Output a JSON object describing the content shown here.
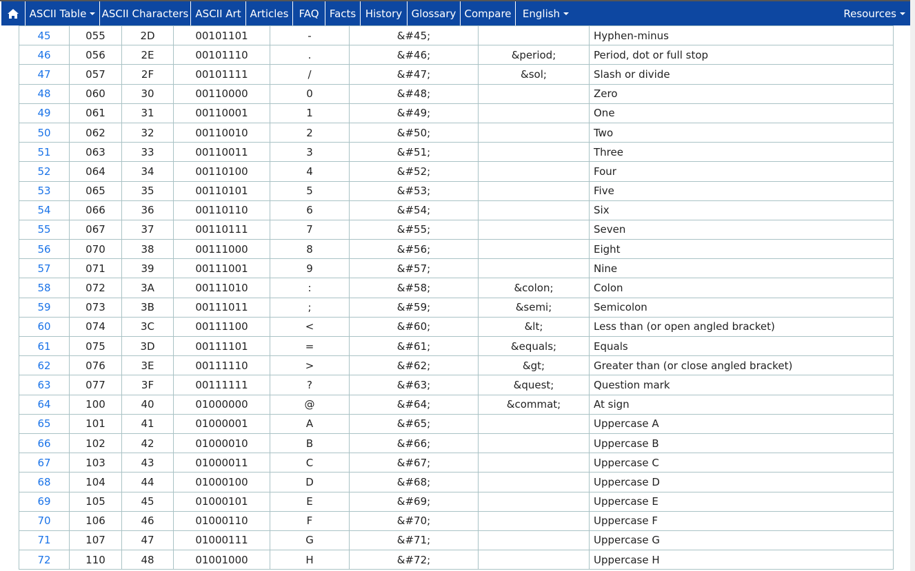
{
  "nav": {
    "home_icon": "home-icon",
    "items": [
      {
        "label": "ASCII Table",
        "dropdown": true
      },
      {
        "label": "ASCII Characters"
      },
      {
        "label": "ASCII Art"
      },
      {
        "label": "Articles"
      },
      {
        "label": "FAQ"
      },
      {
        "label": "Facts"
      },
      {
        "label": "History"
      },
      {
        "label": "Glossary"
      },
      {
        "label": "Compare"
      },
      {
        "label": "English",
        "dropdown": true
      }
    ],
    "resources": "Resources",
    "color": "#0d47a1"
  },
  "rows": [
    [
      "45",
      "055",
      "2D",
      "00101101",
      "-",
      "&#45;",
      "",
      "Hyphen-minus"
    ],
    [
      "46",
      "056",
      "2E",
      "00101110",
      ".",
      "&#46;",
      "&period;",
      "Period, dot or full stop"
    ],
    [
      "47",
      "057",
      "2F",
      "00101111",
      "/",
      "&#47;",
      "&sol;",
      "Slash or divide"
    ],
    [
      "48",
      "060",
      "30",
      "00110000",
      "0",
      "&#48;",
      "",
      "Zero"
    ],
    [
      "49",
      "061",
      "31",
      "00110001",
      "1",
      "&#49;",
      "",
      "One"
    ],
    [
      "50",
      "062",
      "32",
      "00110010",
      "2",
      "&#50;",
      "",
      "Two"
    ],
    [
      "51",
      "063",
      "33",
      "00110011",
      "3",
      "&#51;",
      "",
      "Three"
    ],
    [
      "52",
      "064",
      "34",
      "00110100",
      "4",
      "&#52;",
      "",
      "Four"
    ],
    [
      "53",
      "065",
      "35",
      "00110101",
      "5",
      "&#53;",
      "",
      "Five"
    ],
    [
      "54",
      "066",
      "36",
      "00110110",
      "6",
      "&#54;",
      "",
      "Six"
    ],
    [
      "55",
      "067",
      "37",
      "00110111",
      "7",
      "&#55;",
      "",
      "Seven"
    ],
    [
      "56",
      "070",
      "38",
      "00111000",
      "8",
      "&#56;",
      "",
      "Eight"
    ],
    [
      "57",
      "071",
      "39",
      "00111001",
      "9",
      "&#57;",
      "",
      "Nine"
    ],
    [
      "58",
      "072",
      "3A",
      "00111010",
      ":",
      "&#58;",
      "&colon;",
      "Colon"
    ],
    [
      "59",
      "073",
      "3B",
      "00111011",
      ";",
      "&#59;",
      "&semi;",
      "Semicolon"
    ],
    [
      "60",
      "074",
      "3C",
      "00111100",
      "<",
      "&#60;",
      "&lt;",
      "Less than (or open angled bracket)"
    ],
    [
      "61",
      "075",
      "3D",
      "00111101",
      "=",
      "&#61;",
      "&equals;",
      "Equals"
    ],
    [
      "62",
      "076",
      "3E",
      "00111110",
      ">",
      "&#62;",
      "&gt;",
      "Greater than (or close angled bracket)"
    ],
    [
      "63",
      "077",
      "3F",
      "00111111",
      "?",
      "&#63;",
      "&quest;",
      "Question mark"
    ],
    [
      "64",
      "100",
      "40",
      "01000000",
      "@",
      "&#64;",
      "&commat;",
      "At sign"
    ],
    [
      "65",
      "101",
      "41",
      "01000001",
      "A",
      "&#65;",
      "",
      "Uppercase A"
    ],
    [
      "66",
      "102",
      "42",
      "01000010",
      "B",
      "&#66;",
      "",
      "Uppercase B"
    ],
    [
      "67",
      "103",
      "43",
      "01000011",
      "C",
      "&#67;",
      "",
      "Uppercase C"
    ],
    [
      "68",
      "104",
      "44",
      "01000100",
      "D",
      "&#68;",
      "",
      "Uppercase D"
    ],
    [
      "69",
      "105",
      "45",
      "01000101",
      "E",
      "&#69;",
      "",
      "Uppercase E"
    ],
    [
      "70",
      "106",
      "46",
      "01000110",
      "F",
      "&#70;",
      "",
      "Uppercase F"
    ],
    [
      "71",
      "107",
      "47",
      "01000111",
      "G",
      "&#71;",
      "",
      "Uppercase G"
    ],
    [
      "72",
      "110",
      "48",
      "01001000",
      "H",
      "&#72;",
      "",
      "Uppercase H"
    ]
  ]
}
